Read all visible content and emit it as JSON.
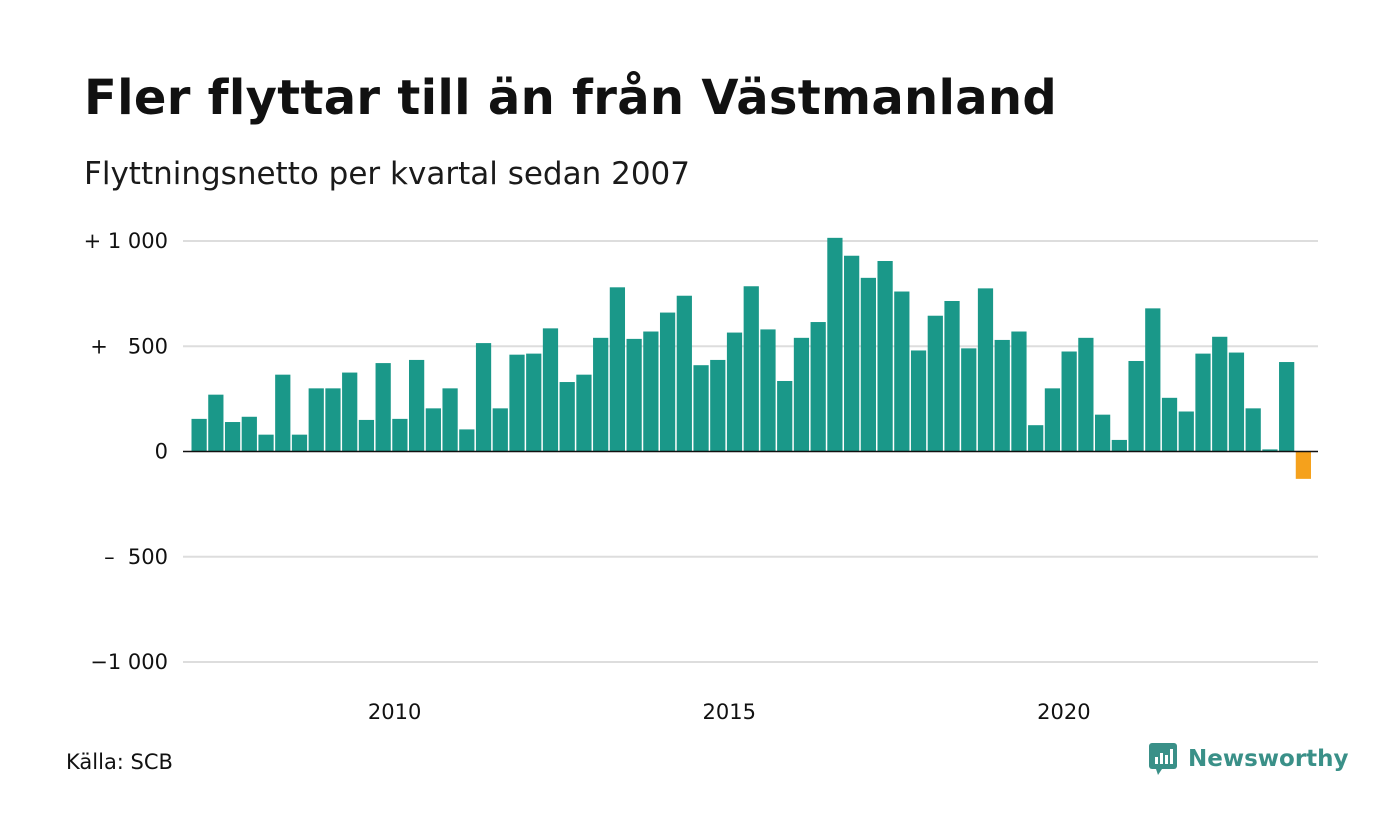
{
  "title": "Fler flyttar till än från Västmanland",
  "subtitle": "Flyttningsnetto per kvartal sedan 2007",
  "source": "Källa: SCB",
  "brand": "Newsworthy",
  "colors": {
    "positive": "#1a9889",
    "negative": "#f5a11c",
    "grid": "#dddddd",
    "zero": "#111111",
    "brand": "#3a9088"
  },
  "chart_data": {
    "type": "bar",
    "title": "Fler flyttar till än från Västmanland",
    "subtitle": "Flyttningsnetto per kvartal sedan 2007",
    "xlabel": "",
    "ylabel": "",
    "ylim": [
      -1000,
      1000
    ],
    "grid": true,
    "y_ticks": [
      1000,
      500,
      0,
      -500,
      -1000
    ],
    "y_tick_labels": [
      "+ 1 000",
      "+   500",
      "0",
      "–  500",
      "−1 000"
    ],
    "x_ticks": [
      2010,
      2015,
      2020
    ],
    "x_tick_labels": [
      "2010",
      "2015",
      "2020"
    ],
    "start_year": 2007,
    "values": [
      155,
      270,
      140,
      165,
      80,
      365,
      80,
      300,
      300,
      375,
      150,
      420,
      155,
      435,
      205,
      300,
      105,
      515,
      205,
      460,
      465,
      585,
      330,
      365,
      540,
      780,
      535,
      570,
      660,
      740,
      410,
      435,
      565,
      785,
      580,
      335,
      540,
      615,
      1015,
      930,
      825,
      905,
      760,
      480,
      645,
      715,
      490,
      775,
      530,
      570,
      125,
      300,
      475,
      540,
      175,
      55,
      430,
      680,
      255,
      190,
      465,
      545,
      470,
      205,
      10,
      425,
      -130
    ]
  }
}
